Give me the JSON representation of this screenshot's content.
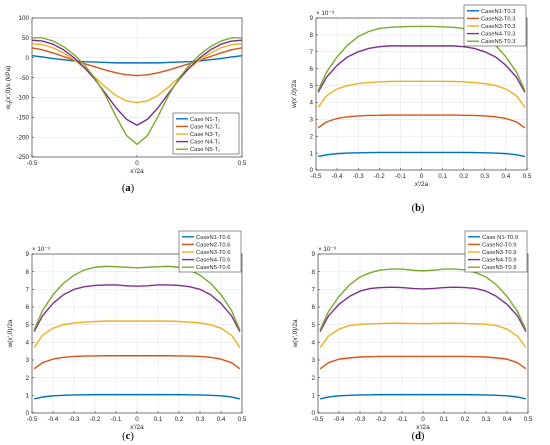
{
  "colors": [
    "#0072BD",
    "#D95319",
    "#EDB120",
    "#7E2F8E",
    "#77AC30"
  ],
  "chart_data": [
    {
      "type": "line",
      "caption": "(a)",
      "xlabel": "x'/2a",
      "ylabel": "w_q(x',0)/ε (kPa)",
      "xlim": [
        -0.5,
        0.5
      ],
      "ylim": [
        -250,
        100
      ],
      "xticks": [
        "-0.5",
        "0",
        "0.5"
      ],
      "yticks": [
        "-250",
        "-200",
        "-150",
        "-100",
        "-50",
        "0",
        "50",
        "100"
      ],
      "multiplier": "",
      "legend_position": "bottom-right",
      "x": [
        -0.5,
        -0.45,
        -0.4,
        -0.35,
        -0.3,
        -0.25,
        -0.2,
        -0.15,
        -0.1,
        -0.05,
        0,
        0.05,
        0.1,
        0.15,
        0.2,
        0.25,
        0.3,
        0.35,
        0.4,
        0.45,
        0.5
      ],
      "series": [
        {
          "name": "Case N1-T₁",
          "values": [
            5,
            2,
            -2,
            -5,
            -8,
            -10,
            -11,
            -12,
            -13,
            -13,
            -13,
            -13,
            -13,
            -12,
            -11,
            -10,
            -8,
            -5,
            -2,
            2,
            5
          ]
        },
        {
          "name": "Case N2-T₁",
          "values": [
            25,
            20,
            12,
            3,
            -6,
            -15,
            -23,
            -31,
            -38,
            -43,
            -45,
            -43,
            -38,
            -31,
            -23,
            -15,
            -6,
            3,
            12,
            20,
            25
          ]
        },
        {
          "name": "Case N3-T₁",
          "values": [
            35,
            33,
            25,
            12,
            -5,
            -26,
            -50,
            -74,
            -95,
            -109,
            -113,
            -109,
            -95,
            -74,
            -50,
            -26,
            -5,
            12,
            25,
            33,
            35
          ]
        },
        {
          "name": "Case N4-T₁",
          "values": [
            44,
            42,
            34,
            20,
            0,
            -25,
            -55,
            -90,
            -126,
            -155,
            -170,
            -155,
            -126,
            -90,
            -55,
            -25,
            0,
            20,
            34,
            42,
            44
          ]
        },
        {
          "name": "Case N5-T₁",
          "values": [
            50,
            50,
            42,
            28,
            8,
            -18,
            -52,
            -95,
            -148,
            -196,
            -218,
            -196,
            -148,
            -95,
            -52,
            -18,
            8,
            28,
            42,
            50,
            50
          ]
        }
      ]
    },
    {
      "type": "line",
      "caption": "(b)",
      "xlabel": "x'/2a",
      "ylabel": "w(x',0)/2a",
      "xlim": [
        -0.5,
        0.5
      ],
      "ylim": [
        0,
        9
      ],
      "xticks": [
        "-0.5",
        "-0.4",
        "-0.3",
        "-0.2",
        "-0.1",
        "0",
        "0.1",
        "0.2",
        "0.3",
        "0.4",
        "0.5"
      ],
      "yticks": [
        "0",
        "1",
        "2",
        "3",
        "4",
        "5",
        "6",
        "7",
        "8",
        "9"
      ],
      "multiplier": "× 10⁻³",
      "legend_position": "top-right",
      "x": [
        -0.49,
        -0.45,
        -0.4,
        -0.35,
        -0.3,
        -0.25,
        -0.2,
        -0.15,
        -0.1,
        -0.05,
        0,
        0.05,
        0.1,
        0.15,
        0.2,
        0.25,
        0.3,
        0.35,
        0.4,
        0.45,
        0.49
      ],
      "series": [
        {
          "name": "CaseN1-T0.3",
          "values": [
            0.8,
            0.9,
            0.97,
            1.0,
            1.02,
            1.03,
            1.04,
            1.04,
            1.04,
            1.04,
            1.04,
            1.04,
            1.04,
            1.04,
            1.04,
            1.03,
            1.02,
            1.0,
            0.97,
            0.9,
            0.8
          ]
        },
        {
          "name": "CaseN2-T0.3",
          "values": [
            2.5,
            2.85,
            3.05,
            3.15,
            3.2,
            3.23,
            3.24,
            3.25,
            3.25,
            3.25,
            3.25,
            3.25,
            3.25,
            3.25,
            3.24,
            3.23,
            3.2,
            3.15,
            3.05,
            2.85,
            2.5
          ]
        },
        {
          "name": "CaseN3-T0.3",
          "values": [
            3.7,
            4.4,
            4.8,
            5.0,
            5.12,
            5.18,
            5.22,
            5.24,
            5.25,
            5.25,
            5.25,
            5.25,
            5.25,
            5.24,
            5.22,
            5.18,
            5.12,
            5.0,
            4.8,
            4.4,
            3.7
          ]
        },
        {
          "name": "CaseN4-T0.3",
          "values": [
            4.6,
            5.5,
            6.2,
            6.7,
            7.0,
            7.2,
            7.3,
            7.35,
            7.35,
            7.35,
            7.35,
            7.35,
            7.35,
            7.35,
            7.3,
            7.2,
            7.0,
            6.7,
            6.2,
            5.5,
            4.6
          ]
        },
        {
          "name": "CaseN5-T0.3",
          "values": [
            4.7,
            5.8,
            6.7,
            7.4,
            7.9,
            8.2,
            8.38,
            8.45,
            8.48,
            8.5,
            8.5,
            8.5,
            8.48,
            8.45,
            8.38,
            8.2,
            7.9,
            7.4,
            6.7,
            5.8,
            4.7
          ]
        }
      ]
    },
    {
      "type": "line",
      "caption": "(c)",
      "xlabel": "x'/2a",
      "ylabel": "w(x',0)/2a",
      "xlim": [
        -0.5,
        0.5
      ],
      "ylim": [
        0,
        9
      ],
      "xticks": [
        "-0.5",
        "-0.4",
        "-0.3",
        "-0.2",
        "-0.1",
        "0",
        "0.1",
        "0.2",
        "0.3",
        "0.4",
        "0.5"
      ],
      "yticks": [
        "0",
        "1",
        "2",
        "3",
        "4",
        "5",
        "6",
        "7",
        "8",
        "9"
      ],
      "multiplier": "× 10⁻³",
      "legend_position": "top-right",
      "x": [
        -0.49,
        -0.45,
        -0.4,
        -0.35,
        -0.3,
        -0.25,
        -0.2,
        -0.15,
        -0.1,
        -0.05,
        0,
        0.05,
        0.1,
        0.15,
        0.2,
        0.25,
        0.3,
        0.35,
        0.4,
        0.45,
        0.49
      ],
      "series": [
        {
          "name": "CaseN1-T0.6",
          "values": [
            0.8,
            0.9,
            0.97,
            1.0,
            1.02,
            1.03,
            1.04,
            1.04,
            1.04,
            1.04,
            1.04,
            1.04,
            1.04,
            1.04,
            1.04,
            1.03,
            1.02,
            1.0,
            0.97,
            0.9,
            0.8
          ]
        },
        {
          "name": "CaseN2-T0.6",
          "values": [
            2.5,
            2.85,
            3.05,
            3.15,
            3.2,
            3.22,
            3.23,
            3.24,
            3.24,
            3.24,
            3.24,
            3.24,
            3.24,
            3.24,
            3.23,
            3.22,
            3.2,
            3.15,
            3.05,
            2.85,
            2.5
          ]
        },
        {
          "name": "CaseN3-T0.6",
          "values": [
            3.7,
            4.4,
            4.8,
            5.0,
            5.1,
            5.15,
            5.18,
            5.2,
            5.2,
            5.2,
            5.2,
            5.2,
            5.2,
            5.2,
            5.18,
            5.15,
            5.1,
            5.0,
            4.8,
            4.4,
            3.7
          ]
        },
        {
          "name": "CaseN4-T0.6",
          "values": [
            4.6,
            5.5,
            6.2,
            6.7,
            7.0,
            7.15,
            7.22,
            7.25,
            7.25,
            7.2,
            7.18,
            7.2,
            7.25,
            7.25,
            7.22,
            7.15,
            7.0,
            6.7,
            6.2,
            5.5,
            4.6
          ]
        },
        {
          "name": "CaseN5-T0.6",
          "values": [
            4.7,
            5.8,
            6.7,
            7.35,
            7.8,
            8.1,
            8.25,
            8.3,
            8.28,
            8.25,
            8.22,
            8.25,
            8.28,
            8.3,
            8.25,
            8.1,
            7.8,
            7.35,
            6.7,
            5.8,
            4.7
          ]
        }
      ]
    },
    {
      "type": "line",
      "caption": "(d)",
      "xlabel": "x'/2a",
      "ylabel": "w(x',0)/2a",
      "xlim": [
        -0.5,
        0.5
      ],
      "ylim": [
        0,
        9
      ],
      "xticks": [
        "-0.5",
        "-0.4",
        "-0.3",
        "-0.2",
        "-0.1",
        "0",
        "0.1",
        "0.2",
        "0.3",
        "0.4",
        "0.5"
      ],
      "yticks": [
        "0",
        "1",
        "2",
        "3",
        "4",
        "5",
        "6",
        "7",
        "8",
        "9"
      ],
      "multiplier": "× 10⁻³",
      "legend_position": "top-right",
      "x": [
        -0.49,
        -0.45,
        -0.4,
        -0.35,
        -0.3,
        -0.25,
        -0.2,
        -0.15,
        -0.1,
        -0.05,
        0,
        0.05,
        0.1,
        0.15,
        0.2,
        0.25,
        0.3,
        0.35,
        0.4,
        0.45,
        0.49
      ],
      "series": [
        {
          "name": "Case N1-T0.9",
          "values": [
            0.8,
            0.9,
            0.97,
            1.0,
            1.02,
            1.03,
            1.04,
            1.04,
            1.04,
            1.04,
            1.04,
            1.04,
            1.04,
            1.04,
            1.04,
            1.03,
            1.02,
            1.0,
            0.97,
            0.9,
            0.8
          ]
        },
        {
          "name": "CaseN2-T0.9",
          "values": [
            2.5,
            2.85,
            3.05,
            3.12,
            3.17,
            3.19,
            3.2,
            3.2,
            3.2,
            3.2,
            3.2,
            3.2,
            3.2,
            3.2,
            3.2,
            3.19,
            3.17,
            3.12,
            3.05,
            2.85,
            2.5
          ]
        },
        {
          "name": "CaseN3-T0.9",
          "values": [
            3.7,
            4.35,
            4.75,
            4.95,
            5.02,
            5.05,
            5.07,
            5.08,
            5.08,
            5.07,
            5.06,
            5.07,
            5.08,
            5.08,
            5.07,
            5.05,
            5.02,
            4.95,
            4.75,
            4.35,
            3.7
          ]
        },
        {
          "name": "CaseN4-T0.9",
          "values": [
            4.6,
            5.5,
            6.15,
            6.6,
            6.9,
            7.05,
            7.1,
            7.12,
            7.1,
            7.05,
            7.02,
            7.05,
            7.1,
            7.12,
            7.1,
            7.05,
            6.9,
            6.6,
            6.15,
            5.5,
            4.6
          ]
        },
        {
          "name": "CaseN5-T0.9",
          "values": [
            4.7,
            5.75,
            6.6,
            7.25,
            7.7,
            7.95,
            8.1,
            8.15,
            8.15,
            8.08,
            8.05,
            8.08,
            8.15,
            8.15,
            8.1,
            7.95,
            7.7,
            7.25,
            6.6,
            5.75,
            4.7
          ]
        }
      ]
    }
  ]
}
